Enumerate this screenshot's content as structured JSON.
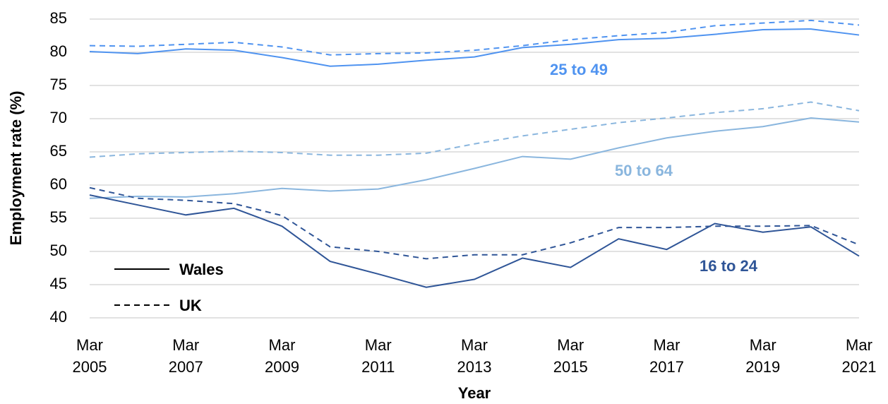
{
  "chart_data": {
    "type": "line",
    "y_label": "Employment rate (%)",
    "x_label": "Year",
    "categories": [
      "Mar 2005",
      null,
      "Mar 2007",
      null,
      "Mar 2009",
      null,
      "Mar 2011",
      null,
      "Mar 2013",
      null,
      "Mar 2015",
      null,
      "Mar 2017",
      null,
      "Mar 2019",
      null,
      "Mar 2021"
    ],
    "ylim": [
      40,
      85
    ],
    "yticks": [
      40,
      45,
      50,
      55,
      60,
      65,
      70,
      75,
      80,
      85
    ],
    "grid": true,
    "legend_position": "lower left",
    "legend": [
      {
        "name": "Wales",
        "dash": "solid"
      },
      {
        "name": "UK",
        "dash": "dashed"
      }
    ],
    "series": [
      {
        "name": "25 to 49",
        "color": "#4f93f0",
        "lines": [
          {
            "values": [
              80.1,
              79.8,
              80.5,
              80.3,
              79.2,
              77.9,
              78.2,
              78.8,
              79.3,
              80.7,
              81.2,
              81.9,
              82.1,
              82.7,
              83.4,
              83.5,
              82.6
            ]
          },
          {
            "values": [
              81.0,
              80.9,
              81.2,
              81.5,
              80.8,
              79.6,
              79.8,
              79.9,
              80.3,
              81.0,
              81.9,
              82.5,
              83.0,
              84.0,
              84.4,
              84.8,
              84.1
            ]
          }
        ]
      },
      {
        "name": "50 to 64",
        "color": "#8ab6de",
        "lines": [
          {
            "values": [
              58.0,
              58.3,
              58.2,
              58.7,
              59.5,
              59.1,
              59.4,
              60.8,
              62.5,
              64.3,
              63.9,
              65.6,
              67.1,
              68.1,
              68.8,
              70.1,
              69.5
            ]
          },
          {
            "values": [
              64.2,
              64.7,
              64.9,
              65.1,
              64.9,
              64.5,
              64.5,
              64.8,
              66.2,
              67.4,
              68.4,
              69.4,
              70.1,
              70.9,
              71.5,
              72.5,
              71.2
            ]
          }
        ]
      },
      {
        "name": "16 to 24",
        "color": "#2f5597",
        "lines": [
          {
            "values": [
              58.5,
              57.0,
              55.5,
              56.5,
              53.8,
              48.5,
              46.6,
              44.6,
              45.8,
              49.0,
              47.6,
              51.9,
              50.3,
              54.2,
              52.9,
              53.7,
              49.3
            ]
          },
          {
            "values": [
              59.6,
              58.0,
              57.7,
              57.2,
              55.4,
              50.7,
              50.0,
              48.9,
              49.5,
              49.5,
              51.3,
              53.6,
              53.6,
              53.8,
              53.8,
              53.9,
              51.0
            ]
          }
        ]
      }
    ]
  }
}
